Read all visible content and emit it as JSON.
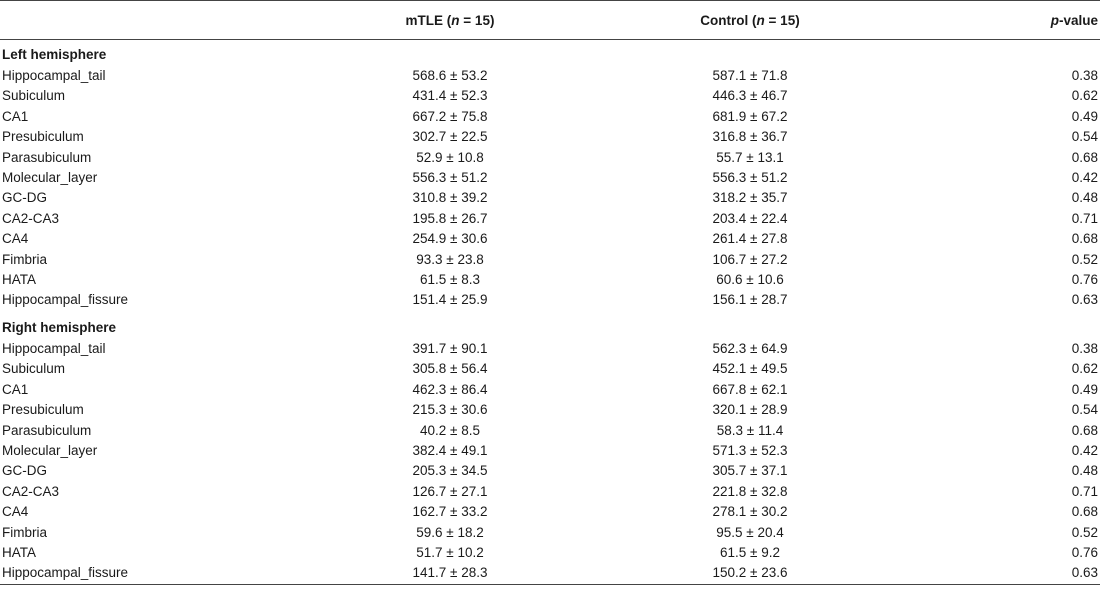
{
  "header": {
    "col1": "",
    "mtle": {
      "prefix": "mTLE (",
      "n": "n",
      "suffix": " = 15)"
    },
    "control": {
      "prefix": "Control (",
      "n": "n",
      "suffix": " = 15)"
    },
    "pvalue": {
      "p": "p",
      "suffix": "-value"
    }
  },
  "sections": [
    {
      "title": "Left hemisphere",
      "rows": [
        {
          "name": "Hippocampal_tail",
          "mtle": "568.6 ± 53.2",
          "control": "587.1 ± 71.8",
          "p": "0.38"
        },
        {
          "name": "Subiculum",
          "mtle": "431.4 ± 52.3",
          "control": "446.3 ± 46.7",
          "p": "0.62"
        },
        {
          "name": "CA1",
          "mtle": "667.2 ± 75.8",
          "control": "681.9 ± 67.2",
          "p": "0.49"
        },
        {
          "name": "Presubiculum",
          "mtle": "302.7 ± 22.5",
          "control": "316.8 ± 36.7",
          "p": "0.54"
        },
        {
          "name": "Parasubiculum",
          "mtle": "52.9 ± 10.8",
          "control": "55.7 ± 13.1",
          "p": "0.68"
        },
        {
          "name": "Molecular_layer",
          "mtle": "556.3 ± 51.2",
          "control": "556.3 ± 51.2",
          "p": "0.42"
        },
        {
          "name": "GC-DG",
          "mtle": "310.8 ± 39.2",
          "control": "318.2 ± 35.7",
          "p": "0.48"
        },
        {
          "name": "CA2-CA3",
          "mtle": "195.8 ± 26.7",
          "control": "203.4 ± 22.4",
          "p": "0.71"
        },
        {
          "name": "CA4",
          "mtle": "254.9 ± 30.6",
          "control": "261.4 ± 27.8",
          "p": "0.68"
        },
        {
          "name": "Fimbria",
          "mtle": "93.3 ± 23.8",
          "control": "106.7 ± 27.2",
          "p": "0.52"
        },
        {
          "name": "HATA",
          "mtle": "61.5 ± 8.3",
          "control": "60.6 ± 10.6",
          "p": "0.76"
        },
        {
          "name": "Hippocampal_fissure",
          "mtle": "151.4 ± 25.9",
          "control": "156.1 ± 28.7",
          "p": "0.63"
        }
      ]
    },
    {
      "title": "Right hemisphere",
      "rows": [
        {
          "name": "Hippocampal_tail",
          "mtle": "391.7 ± 90.1",
          "control": "562.3 ± 64.9",
          "p": "0.38"
        },
        {
          "name": "Subiculum",
          "mtle": "305.8 ± 56.4",
          "control": "452.1 ± 49.5",
          "p": "0.62"
        },
        {
          "name": "CA1",
          "mtle": "462.3 ± 86.4",
          "control": "667.8 ± 62.1",
          "p": "0.49"
        },
        {
          "name": "Presubiculum",
          "mtle": "215.3 ± 30.6",
          "control": "320.1 ± 28.9",
          "p": "0.54"
        },
        {
          "name": "Parasubiculum",
          "mtle": "40.2 ± 8.5",
          "control": "58.3 ± 11.4",
          "p": "0.68"
        },
        {
          "name": "Molecular_layer",
          "mtle": "382.4 ± 49.1",
          "control": "571.3 ± 52.3",
          "p": "0.42"
        },
        {
          "name": "GC-DG",
          "mtle": "205.3 ± 34.5",
          "control": "305.7 ± 37.1",
          "p": "0.48"
        },
        {
          "name": "CA2-CA3",
          "mtle": "126.7 ± 27.1",
          "control": "221.8 ± 32.8",
          "p": "0.71"
        },
        {
          "name": "CA4",
          "mtle": "162.7 ± 33.2",
          "control": "278.1 ± 30.2",
          "p": "0.68"
        },
        {
          "name": "Fimbria",
          "mtle": "59.6 ± 18.2",
          "control": "95.5 ± 20.4",
          "p": "0.52"
        },
        {
          "name": "HATA",
          "mtle": "51.7 ± 10.2",
          "control": "61.5 ± 9.2",
          "p": "0.76"
        },
        {
          "name": "Hippocampal_fissure",
          "mtle": "141.7 ± 28.3",
          "control": "150.2 ± 23.6",
          "p": "0.63"
        }
      ]
    }
  ]
}
